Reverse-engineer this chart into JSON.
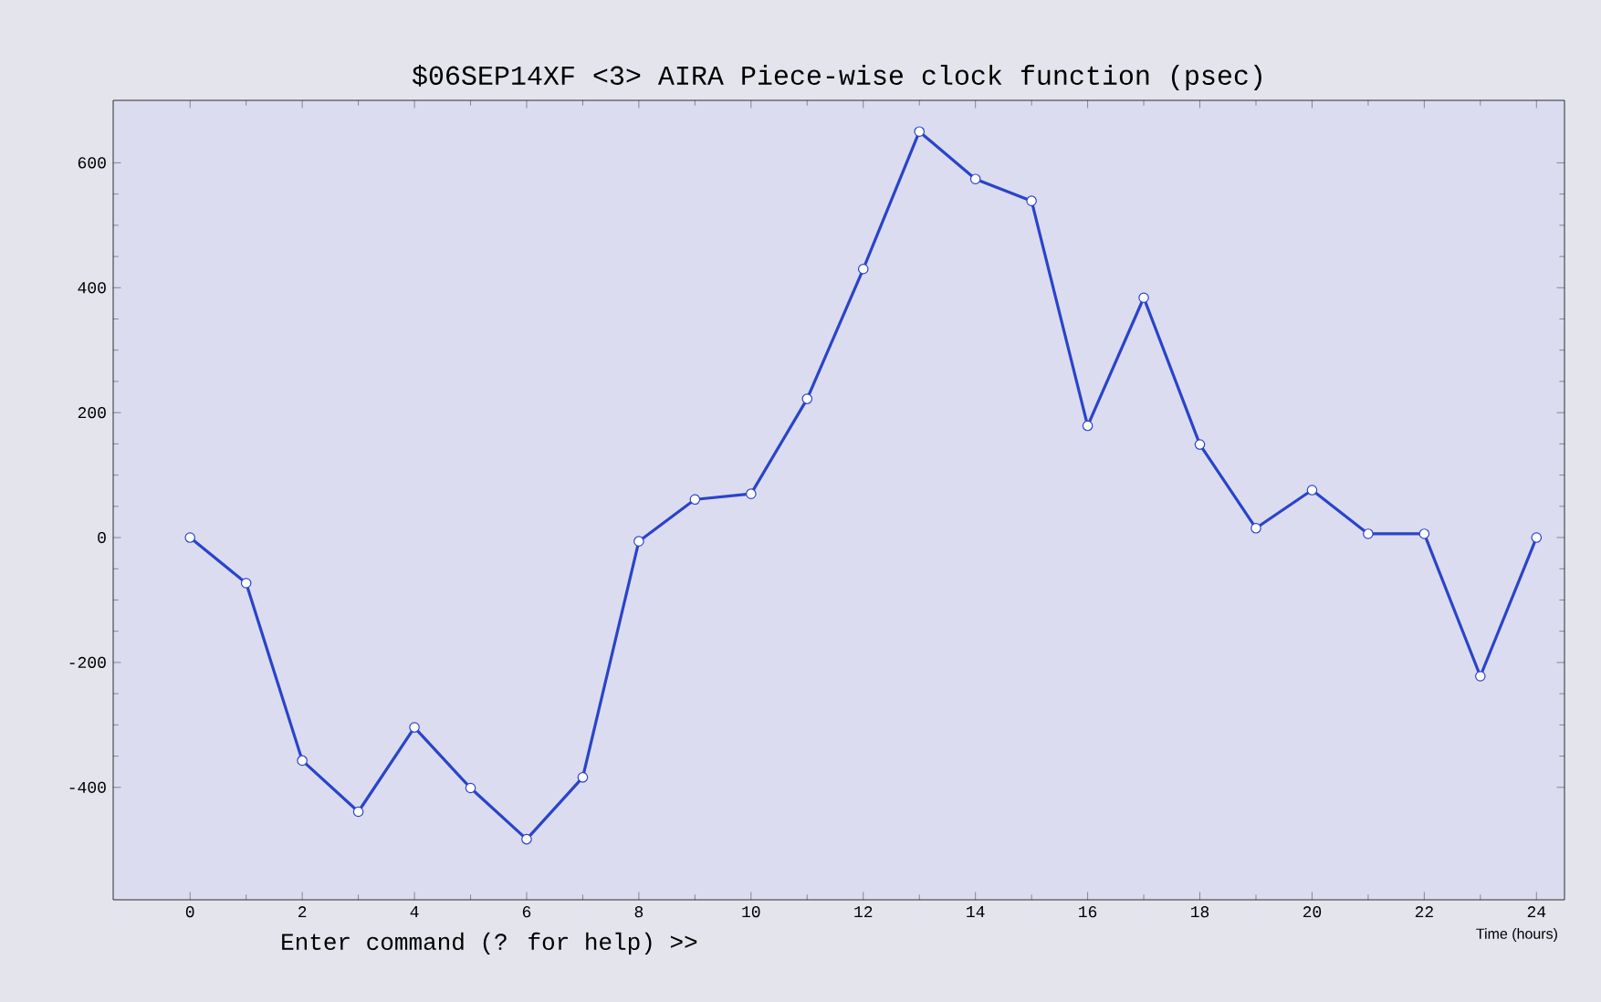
{
  "chart_data": {
    "type": "line",
    "title": "$06SEP14XF <3>  AIRA       Piece-wise clock function (psec)",
    "xlabel": "Time (hours)",
    "annotations": [
      "Enter command (? for help) >>"
    ],
    "x": [
      0,
      1,
      2,
      3,
      4,
      5,
      6,
      7,
      8,
      9,
      10,
      11,
      12,
      13,
      14,
      15,
      16,
      17,
      18,
      19,
      20,
      21,
      22,
      23,
      24
    ],
    "values": [
      0,
      -73,
      -357,
      -439,
      -304,
      -401,
      -483,
      -384,
      -6,
      61,
      70,
      222,
      430,
      650,
      574,
      539,
      179,
      384,
      149,
      15,
      76,
      6,
      6,
      -222,
      0
    ],
    "color": "#2a44c8",
    "marker": "circle",
    "xlim": [
      -1.37,
      24.5
    ],
    "ylim": [
      -580,
      700
    ],
    "xticks": [
      0,
      2,
      4,
      6,
      8,
      10,
      12,
      14,
      16,
      18,
      20,
      22,
      24
    ],
    "yticks": [
      -400,
      -200,
      0,
      200,
      400,
      600
    ]
  }
}
